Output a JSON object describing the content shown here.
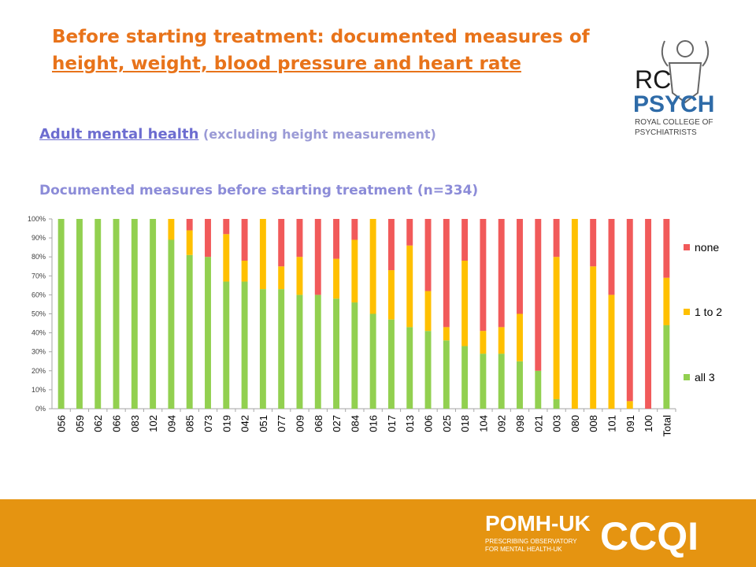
{
  "title": {
    "line1": "Before starting treatment: documented measures of",
    "line2": "height, weight, blood pressure and heart rate"
  },
  "subtitle": {
    "link": "Adult mental health",
    "rest": " (excluding height measurement)"
  },
  "chart_heading": "Documented measures before starting treatment (n=334)",
  "logos": {
    "rcpsych": {
      "line1": "RC",
      "line2": "PSYCH",
      "line3": "ROYAL COLLEGE OF",
      "line4": "PSYCHIATRISTS"
    },
    "pomh": {
      "name": "POMH-UK",
      "line1": "PRESCRIBING OBSERVATORY",
      "line2": "FOR MENTAL HEALTH-UK",
      "ccqi": "CCQI"
    }
  },
  "colors": {
    "all3": "#92d050",
    "one_to_two": "#ffc000",
    "none": "#f15a5a",
    "title": "#e8731a",
    "subtitle": "#8c8cd8",
    "footer": "#e59411"
  },
  "chart_data": {
    "type": "bar",
    "stacked": true,
    "percent": true,
    "ylim": [
      0,
      100
    ],
    "ytick_labels": [
      "0%",
      "10%",
      "20%",
      "30%",
      "40%",
      "50%",
      "60%",
      "70%",
      "80%",
      "90%",
      "100%"
    ],
    "legend_position": "right",
    "categories": [
      "056",
      "059",
      "062",
      "066",
      "083",
      "102",
      "094",
      "085",
      "073",
      "019",
      "042",
      "051",
      "077",
      "009",
      "068",
      "027",
      "084",
      "016",
      "017",
      "013",
      "006",
      "025",
      "018",
      "104",
      "092",
      "098",
      "021",
      "003",
      "080",
      "008",
      "101",
      "091",
      "100",
      "Total"
    ],
    "series": [
      {
        "name": "all 3",
        "values": [
          100,
          100,
          100,
          100,
          100,
          100,
          89,
          81,
          80,
          67,
          67,
          63,
          63,
          60,
          60,
          58,
          56,
          50,
          47,
          43,
          41,
          36,
          33,
          29,
          29,
          25,
          20,
          5,
          0,
          0,
          0,
          0,
          0,
          44
        ]
      },
      {
        "name": "1 to 2",
        "values": [
          0,
          0,
          0,
          0,
          0,
          0,
          11,
          13,
          0,
          25,
          11,
          37,
          12,
          20,
          0,
          21,
          33,
          50,
          26,
          43,
          21,
          7,
          45,
          12,
          14,
          25,
          0,
          75,
          100,
          75,
          60,
          4,
          0,
          25
        ]
      },
      {
        "name": "none",
        "values": [
          0,
          0,
          0,
          0,
          0,
          0,
          0,
          6,
          20,
          8,
          22,
          0,
          25,
          20,
          40,
          21,
          11,
          0,
          27,
          14,
          38,
          57,
          22,
          59,
          57,
          50,
          80,
          20,
          0,
          25,
          40,
          96,
          100,
          31
        ]
      }
    ]
  }
}
